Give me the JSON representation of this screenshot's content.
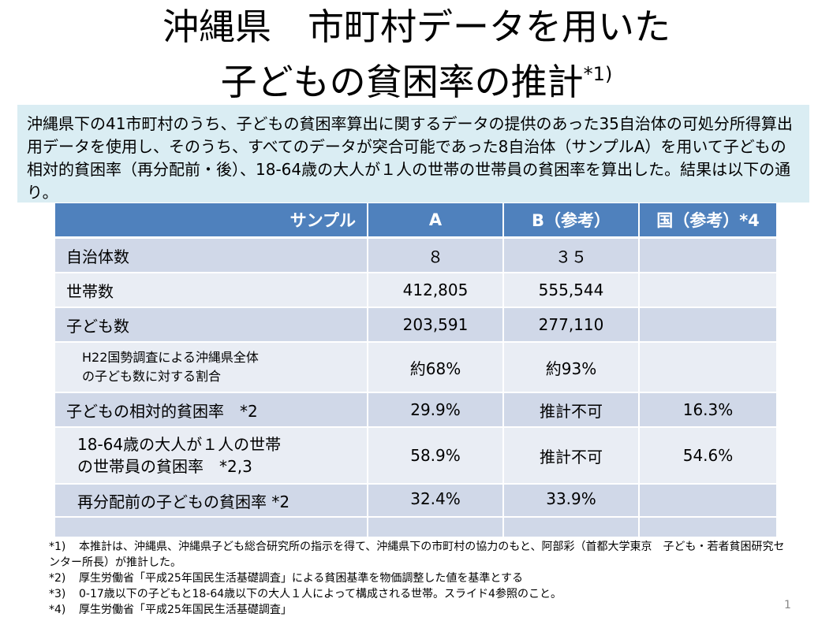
{
  "title": {
    "line1": "沖縄県　市町村データを用いた",
    "line2": "子どもの貧困率の推計",
    "footnote_mark": "*1)"
  },
  "summary": "沖縄県下の41市町村のうち、子どもの貧困率算出に関するデータの提供のあった35自治体の可処分所得算出用データを使用し、そのうち、すべてのデータが突合可能であった8自治体（サンプルA）を用いて子どもの相対的貧困率（再分配前・後）、18-64歳の大人が１人の世帯の世帯員の貧困率を算出した。結果は以下の通り。",
  "table": {
    "headers": [
      "サンプル",
      "A",
      "B（参考）",
      "国（参考）*4"
    ],
    "rows": [
      {
        "label": "自治体数",
        "a": "８",
        "b": "３５",
        "c": ""
      },
      {
        "label": "世帯数",
        "a": "412,805",
        "b": "555,544",
        "c": ""
      },
      {
        "label": "子ども数",
        "a": "203,591",
        "b": "277,110",
        "c": ""
      },
      {
        "label": "H22国勢調査による沖縄県全体の子ども数に対する割合",
        "label_line1": "H22国勢調査による沖縄県全体",
        "label_line2": "の子ども数に対する割合",
        "a": "約68%",
        "b": "約93%",
        "c": ""
      },
      {
        "label": "子どもの相対的貧困率　*2",
        "a": "29.9%",
        "b": "推計不可",
        "c": "16.3%"
      },
      {
        "label_line1": "18-64歳の大人が１人の世帯",
        "label_line2": "の世帯員の貧困率　*2,3",
        "a": "58.9%",
        "b": "推計不可",
        "c": "54.6%"
      },
      {
        "label": "再分配前の子どもの貧困率 *2",
        "a": "32.4%",
        "b": "33.9%",
        "c": ""
      }
    ]
  },
  "notes": [
    {
      "mark": "*1)",
      "text": "本推計は、沖縄県、沖縄県子ども総合研究所の指示を得て、沖縄県下の市町村の協力のもと、阿部彩（首都大学東京　子ども・若者貧困研究センター所長）が推計した。"
    },
    {
      "mark": "*2)",
      "text": "厚生労働省「平成25年国民生活基礎調査」による貧困基準を物価調整した値を基準とする"
    },
    {
      "mark": "*3)",
      "text": "0-17歳以下の子どもと18-64歳以下の大人１人によって構成される世帯。スライド4参照のこと。"
    },
    {
      "mark": "*4)",
      "text": "厚生労働省「平成25年国民生活基礎調査」"
    }
  ],
  "page_number": "1"
}
